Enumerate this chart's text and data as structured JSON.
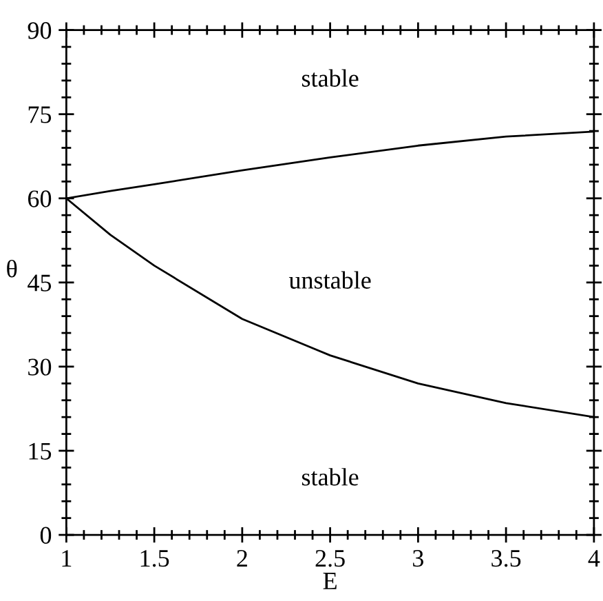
{
  "chart_data": {
    "type": "line",
    "xlabel": "E",
    "ylabel": "θ",
    "series": [
      {
        "color": "#000000",
        "x": [
          1,
          1.25,
          1.5,
          2,
          2.5,
          3,
          3.5,
          4
        ],
        "values": [
          60,
          61.3,
          62.5,
          65,
          67.3,
          69.4,
          71,
          71.9
        ]
      },
      {
        "color": "#000000",
        "x": [
          1,
          1.25,
          1.5,
          2,
          2.5,
          3,
          3.5,
          4
        ],
        "values": [
          60,
          53.5,
          48,
          38.5,
          32,
          27,
          23.5,
          21
        ]
      }
    ],
    "xlim": [
      1,
      4
    ],
    "ylim": [
      0,
      90
    ],
    "xticks": [
      1,
      {
        "value": 1.1,
        "label": null
      },
      {
        "value": 1.2,
        "label": null
      },
      {
        "value": 1.3,
        "label": null
      },
      {
        "value": 1.4,
        "label": null
      },
      1.5,
      {
        "value": 1.6,
        "label": null
      },
      {
        "value": 1.7,
        "label": null
      },
      {
        "value": 1.8,
        "label": null
      },
      {
        "value": 1.9,
        "label": null
      },
      2,
      {
        "value": 2.1,
        "label": null
      },
      {
        "value": 2.2,
        "label": null
      },
      {
        "value": 2.3,
        "label": null
      },
      {
        "value": 2.4,
        "label": null
      },
      2.5,
      {
        "value": 2.6,
        "label": null
      },
      {
        "value": 2.7,
        "label": null
      },
      {
        "value": 2.8,
        "label": null
      },
      {
        "value": 2.9,
        "label": null
      },
      3,
      {
        "value": 3.1,
        "label": null
      },
      {
        "value": 3.2,
        "label": null
      },
      {
        "value": 3.3,
        "label": null
      },
      {
        "value": 3.4,
        "label": null
      },
      3.5,
      {
        "value": 3.6,
        "label": null
      },
      {
        "value": 3.7,
        "label": null
      },
      {
        "value": 3.8,
        "label": null
      },
      {
        "value": 3.9,
        "label": null
      },
      4
    ],
    "yticks": [
      0,
      {
        "value": 3,
        "label": null
      },
      {
        "value": 6,
        "label": null
      },
      {
        "value": 9,
        "label": null
      },
      {
        "value": 12,
        "label": null
      },
      15,
      {
        "value": 18,
        "label": null
      },
      {
        "value": 21,
        "label": null
      },
      {
        "value": 24,
        "label": null
      },
      {
        "value": 27,
        "label": null
      },
      30,
      {
        "value": 33,
        "label": null
      },
      {
        "value": 36,
        "label": null
      },
      {
        "value": 39,
        "label": null
      },
      {
        "value": 42,
        "label": null
      },
      45,
      {
        "value": 48,
        "label": null
      },
      {
        "value": 51,
        "label": null
      },
      {
        "value": 54,
        "label": null
      },
      {
        "value": 57,
        "label": null
      },
      60,
      {
        "value": 63,
        "label": null
      },
      {
        "value": 66,
        "label": null
      },
      {
        "value": 69,
        "label": null
      },
      {
        "value": 72,
        "label": null
      },
      75,
      {
        "value": 78,
        "label": null
      },
      {
        "value": 81,
        "label": null
      },
      {
        "value": 84,
        "label": null
      },
      {
        "value": 87,
        "label": null
      },
      90
    ],
    "annotations": [
      "stable",
      "unstable",
      "stable"
    ],
    "grid": false,
    "legend": false,
    "marker": "none",
    "line_style": "solid"
  }
}
